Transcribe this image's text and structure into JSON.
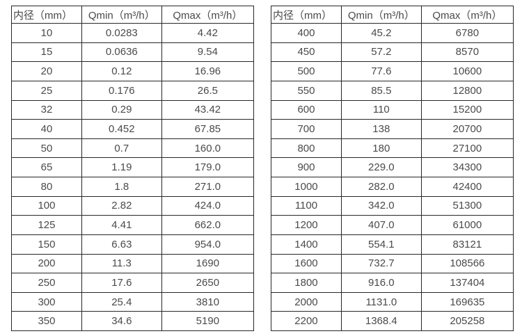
{
  "page": {
    "background_color": "#ffffff",
    "border_color": "#262626",
    "text_color": "#4a4a4a"
  },
  "tables": [
    {
      "name": "small-diameter-flow-table",
      "headers": [
        "内径（mm）",
        "Qmin（m³/h）",
        "Qmax（m³/h）"
      ],
      "rows": [
        [
          "10",
          "0.0283",
          "4.42"
        ],
        [
          "15",
          "0.0636",
          "9.54"
        ],
        [
          "20",
          "0.12",
          "16.96"
        ],
        [
          "25",
          "0.176",
          "26.5"
        ],
        [
          "32",
          "0.29",
          "43.42"
        ],
        [
          "40",
          "0.452",
          "67.85"
        ],
        [
          "50",
          "0.7",
          "160.0"
        ],
        [
          "65",
          "1.19",
          "179.0"
        ],
        [
          "80",
          "1.8",
          "271.0"
        ],
        [
          "100",
          "2.82",
          "424.0"
        ],
        [
          "125",
          "4.41",
          "662.0"
        ],
        [
          "150",
          "6.63",
          "954.0"
        ],
        [
          "200",
          "11.3",
          "1690"
        ],
        [
          "250",
          "17.6",
          "2650"
        ],
        [
          "300",
          "25.4",
          "3810"
        ],
        [
          "350",
          "34.6",
          "5190"
        ]
      ]
    },
    {
      "name": "large-diameter-flow-table",
      "headers": [
        "内径（mm）",
        "Qmin（m³/h）",
        "Qmax（m³/h）"
      ],
      "rows": [
        [
          "400",
          "45.2",
          "6780"
        ],
        [
          "450",
          "57.2",
          "8570"
        ],
        [
          "500",
          "77.6",
          "10600"
        ],
        [
          "550",
          "85.5",
          "12800"
        ],
        [
          "600",
          "110",
          "15200"
        ],
        [
          "700",
          "138",
          "20700"
        ],
        [
          "800",
          "180",
          "27100"
        ],
        [
          "900",
          "229.0",
          "34300"
        ],
        [
          "1000",
          "282.0",
          "42400"
        ],
        [
          "1100",
          "342.0",
          "51300"
        ],
        [
          "1200",
          "407.0",
          "61000"
        ],
        [
          "1400",
          "554.1",
          "83121"
        ],
        [
          "1600",
          "732.7",
          "108566"
        ],
        [
          "1800",
          "916.0",
          "137404"
        ],
        [
          "2000",
          "1131.0",
          "169635"
        ],
        [
          "2200",
          "1368.4",
          "205258"
        ]
      ]
    }
  ]
}
